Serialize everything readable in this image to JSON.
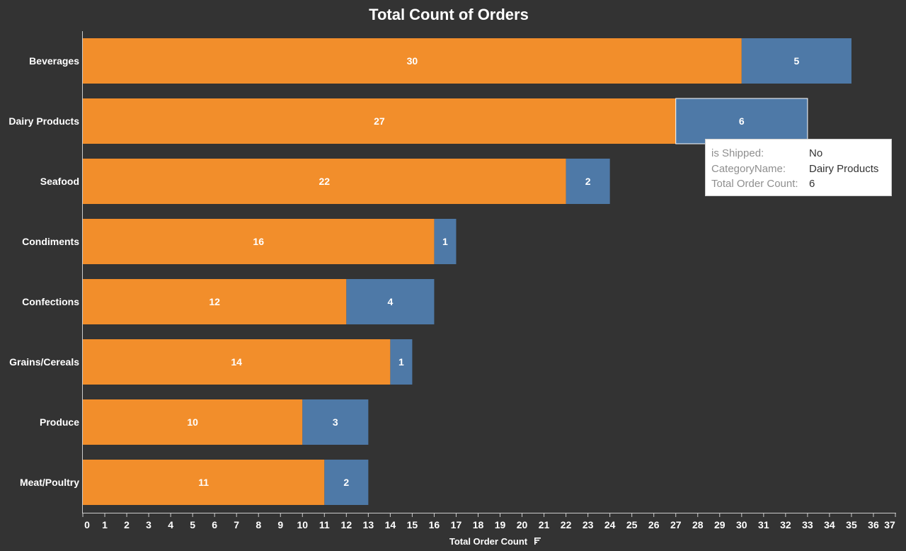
{
  "chart_data": {
    "type": "bar",
    "orientation": "horizontal",
    "stacked": true,
    "title": "Total Count of Orders",
    "xlabel": "Total Order Count",
    "ylabel": "",
    "xlim": [
      0,
      37
    ],
    "xticks": [
      0,
      1,
      2,
      3,
      4,
      5,
      6,
      7,
      8,
      9,
      10,
      11,
      12,
      13,
      14,
      15,
      16,
      17,
      18,
      19,
      20,
      21,
      22,
      23,
      24,
      25,
      26,
      27,
      28,
      29,
      30,
      31,
      32,
      33,
      34,
      35,
      36,
      37
    ],
    "categories": [
      "Beverages",
      "Dairy Products",
      "Seafood",
      "Condiments",
      "Confections",
      "Grains/Cereals",
      "Produce",
      "Meat/Poultry"
    ],
    "series": [
      {
        "values": [
          30,
          27,
          22,
          16,
          12,
          14,
          10,
          11
        ],
        "color": "#f28e2b"
      },
      {
        "values": [
          5,
          6,
          2,
          1,
          4,
          1,
          3,
          2
        ],
        "color": "#4e79a7"
      }
    ],
    "grid": false,
    "highlighted": {
      "category": "Dairy Products",
      "series_index": 1
    }
  },
  "tooltip": {
    "rows": [
      {
        "key": "is Shipped:",
        "value": "No"
      },
      {
        "key": "CategoryName:",
        "value": "Dairy Products"
      },
      {
        "key": "Total Order Count:",
        "value": "6"
      }
    ]
  },
  "sort_icon": "sort-descending-icon"
}
